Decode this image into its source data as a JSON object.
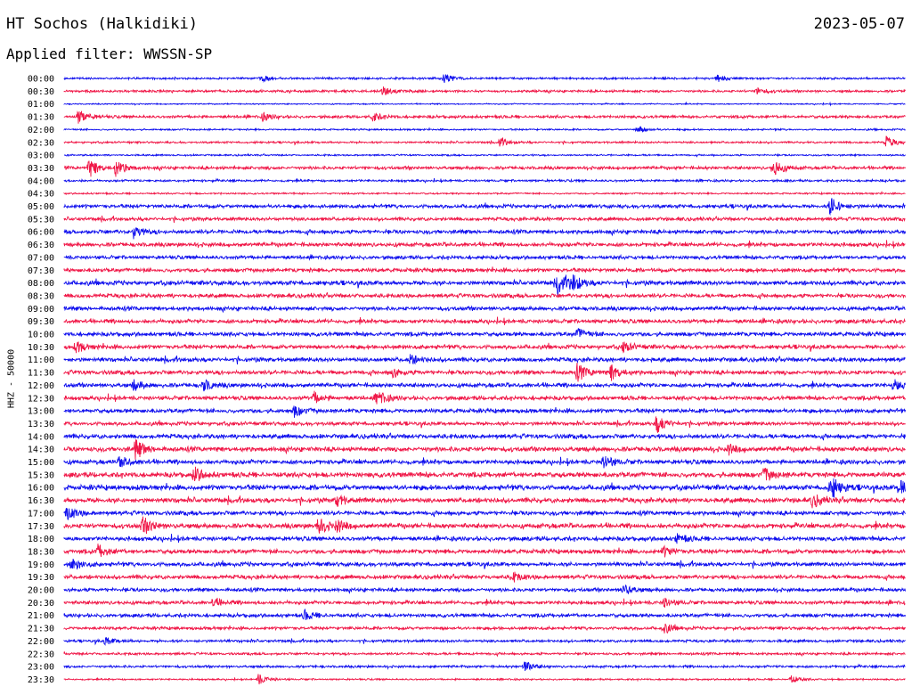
{
  "header": {
    "station": "HT Sochos (Halkidiki)",
    "filter_label": "Applied filter: WWSSN-SP",
    "date": "2023-05-07"
  },
  "colors": {
    "trace_even": "#1010ee",
    "trace_odd": "#f01848"
  },
  "chart_data": {
    "type": "line",
    "title": "HT Sochos (Halkidiki)",
    "ylabel": "HHZ - 50000",
    "y_categories": [
      "00:00",
      "00:30",
      "01:00",
      "01:30",
      "02:00",
      "02:30",
      "03:00",
      "03:30",
      "04:00",
      "04:30",
      "05:00",
      "05:30",
      "06:00",
      "06:30",
      "07:00",
      "07:30",
      "08:00",
      "08:30",
      "09:00",
      "09:30",
      "10:00",
      "10:30",
      "11:00",
      "11:30",
      "12:00",
      "12:30",
      "13:00",
      "13:30",
      "14:00",
      "14:30",
      "15:00",
      "15:30",
      "16:00",
      "16:30",
      "17:00",
      "17:30",
      "18:00",
      "18:30",
      "19:00",
      "19:30",
      "20:00",
      "20:30",
      "21:00",
      "21:30",
      "22:00",
      "22:30",
      "23:00",
      "23:30"
    ],
    "noise_level": [
      1.0,
      1.2,
      0.6,
      1.4,
      0.8,
      1.0,
      0.8,
      1.6,
      1.1,
      0.8,
      1.8,
      1.7,
      2.0,
      2.0,
      1.8,
      1.9,
      2.2,
      2.0,
      2.0,
      2.0,
      2.0,
      2.0,
      2.1,
      2.1,
      2.1,
      2.0,
      2.0,
      1.8,
      2.2,
      2.4,
      2.2,
      2.5,
      2.5,
      2.4,
      2.1,
      2.4,
      2.1,
      2.1,
      2.0,
      2.0,
      1.8,
      1.8,
      1.8,
      1.5,
      1.3,
      1.2,
      1.2,
      0.8
    ],
    "events": [
      {
        "row": 0,
        "x": 292,
        "amp": 4
      },
      {
        "row": 0,
        "x": 498,
        "amp": 5
      },
      {
        "row": 0,
        "x": 805,
        "amp": 4
      },
      {
        "row": 1,
        "x": 430,
        "amp": 5
      },
      {
        "row": 1,
        "x": 850,
        "amp": 4
      },
      {
        "row": 3,
        "x": 88,
        "amp": 8
      },
      {
        "row": 3,
        "x": 295,
        "amp": 4
      },
      {
        "row": 3,
        "x": 418,
        "amp": 5
      },
      {
        "row": 4,
        "x": 715,
        "amp": 4
      },
      {
        "row": 5,
        "x": 560,
        "amp": 5
      },
      {
        "row": 5,
        "x": 995,
        "amp": 6
      },
      {
        "row": 7,
        "x": 100,
        "amp": 10
      },
      {
        "row": 7,
        "x": 130,
        "amp": 9
      },
      {
        "row": 7,
        "x": 868,
        "amp": 9
      },
      {
        "row": 10,
        "x": 932,
        "amp": 10
      },
      {
        "row": 12,
        "x": 150,
        "amp": 6
      },
      {
        "row": 16,
        "x": 626,
        "amp": 12
      },
      {
        "row": 16,
        "x": 642,
        "amp": 9
      },
      {
        "row": 20,
        "x": 648,
        "amp": 6
      },
      {
        "row": 21,
        "x": 85,
        "amp": 6
      },
      {
        "row": 21,
        "x": 700,
        "amp": 6
      },
      {
        "row": 22,
        "x": 460,
        "amp": 5
      },
      {
        "row": 23,
        "x": 440,
        "amp": 5
      },
      {
        "row": 23,
        "x": 648,
        "amp": 9
      },
      {
        "row": 23,
        "x": 686,
        "amp": 8
      },
      {
        "row": 24,
        "x": 150,
        "amp": 6
      },
      {
        "row": 24,
        "x": 228,
        "amp": 6
      },
      {
        "row": 24,
        "x": 1003,
        "amp": 6
      },
      {
        "row": 25,
        "x": 352,
        "amp": 6
      },
      {
        "row": 25,
        "x": 423,
        "amp": 8
      },
      {
        "row": 26,
        "x": 330,
        "amp": 6
      },
      {
        "row": 27,
        "x": 737,
        "amp": 10
      },
      {
        "row": 29,
        "x": 152,
        "amp": 10
      },
      {
        "row": 29,
        "x": 818,
        "amp": 5
      },
      {
        "row": 30,
        "x": 135,
        "amp": 6
      },
      {
        "row": 30,
        "x": 678,
        "amp": 7
      },
      {
        "row": 31,
        "x": 218,
        "amp": 8
      },
      {
        "row": 31,
        "x": 858,
        "amp": 7
      },
      {
        "row": 32,
        "x": 932,
        "amp": 14
      },
      {
        "row": 32,
        "x": 1010,
        "amp": 9
      },
      {
        "row": 33,
        "x": 378,
        "amp": 6
      },
      {
        "row": 33,
        "x": 912,
        "amp": 7
      },
      {
        "row": 34,
        "x": 75,
        "amp": 7
      },
      {
        "row": 35,
        "x": 160,
        "amp": 10
      },
      {
        "row": 35,
        "x": 357,
        "amp": 9
      },
      {
        "row": 35,
        "x": 378,
        "amp": 6
      },
      {
        "row": 36,
        "x": 760,
        "amp": 5
      },
      {
        "row": 37,
        "x": 110,
        "amp": 7
      },
      {
        "row": 37,
        "x": 745,
        "amp": 5
      },
      {
        "row": 38,
        "x": 80,
        "amp": 7
      },
      {
        "row": 39,
        "x": 575,
        "amp": 5
      },
      {
        "row": 40,
        "x": 700,
        "amp": 6
      },
      {
        "row": 41,
        "x": 240,
        "amp": 5
      },
      {
        "row": 41,
        "x": 745,
        "amp": 5
      },
      {
        "row": 42,
        "x": 342,
        "amp": 5
      },
      {
        "row": 43,
        "x": 745,
        "amp": 5
      },
      {
        "row": 44,
        "x": 118,
        "amp": 4
      },
      {
        "row": 46,
        "x": 588,
        "amp": 6
      },
      {
        "row": 47,
        "x": 290,
        "amp": 6
      },
      {
        "row": 47,
        "x": 888,
        "amp": 4
      }
    ]
  }
}
